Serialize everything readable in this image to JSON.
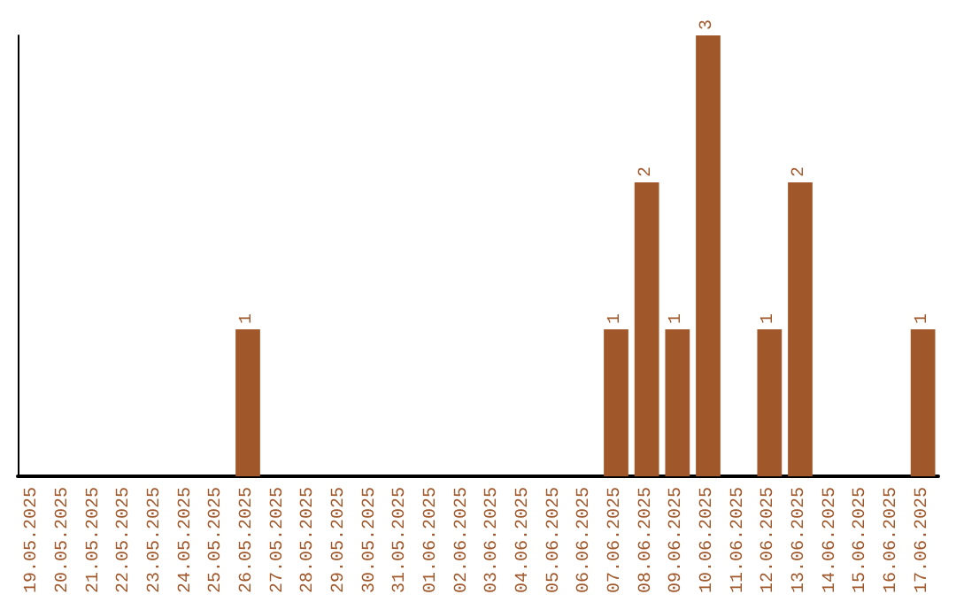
{
  "chart_data": {
    "type": "bar",
    "categories": [
      "19.05.2025",
      "20.05.2025",
      "21.05.2025",
      "22.05.2025",
      "23.05.2025",
      "24.05.2025",
      "25.05.2025",
      "26.05.2025",
      "27.05.2025",
      "28.05.2025",
      "29.05.2025",
      "30.05.2025",
      "31.05.2025",
      "01.06.2025",
      "02.06.2025",
      "03.06.2025",
      "04.06.2025",
      "05.06.2025",
      "06.06.2025",
      "07.06.2025",
      "08.06.2025",
      "09.06.2025",
      "10.06.2025",
      "11.06.2025",
      "12.06.2025",
      "13.06.2025",
      "14.06.2025",
      "15.06.2025",
      "16.06.2025",
      "17.06.2025"
    ],
    "values": [
      0,
      0,
      0,
      0,
      0,
      0,
      0,
      1,
      0,
      0,
      0,
      0,
      0,
      0,
      0,
      0,
      0,
      0,
      0,
      1,
      2,
      1,
      3,
      0,
      1,
      2,
      0,
      0,
      0,
      1
    ],
    "value_labels": [
      null,
      null,
      null,
      null,
      null,
      null,
      null,
      "1",
      null,
      null,
      null,
      null,
      null,
      null,
      null,
      null,
      null,
      null,
      null,
      "1",
      "2",
      "1",
      "3",
      null,
      "1",
      "2",
      null,
      null,
      null,
      "1"
    ],
    "color": "#a0572a",
    "grid": false,
    "tick_labels": "x"
  }
}
